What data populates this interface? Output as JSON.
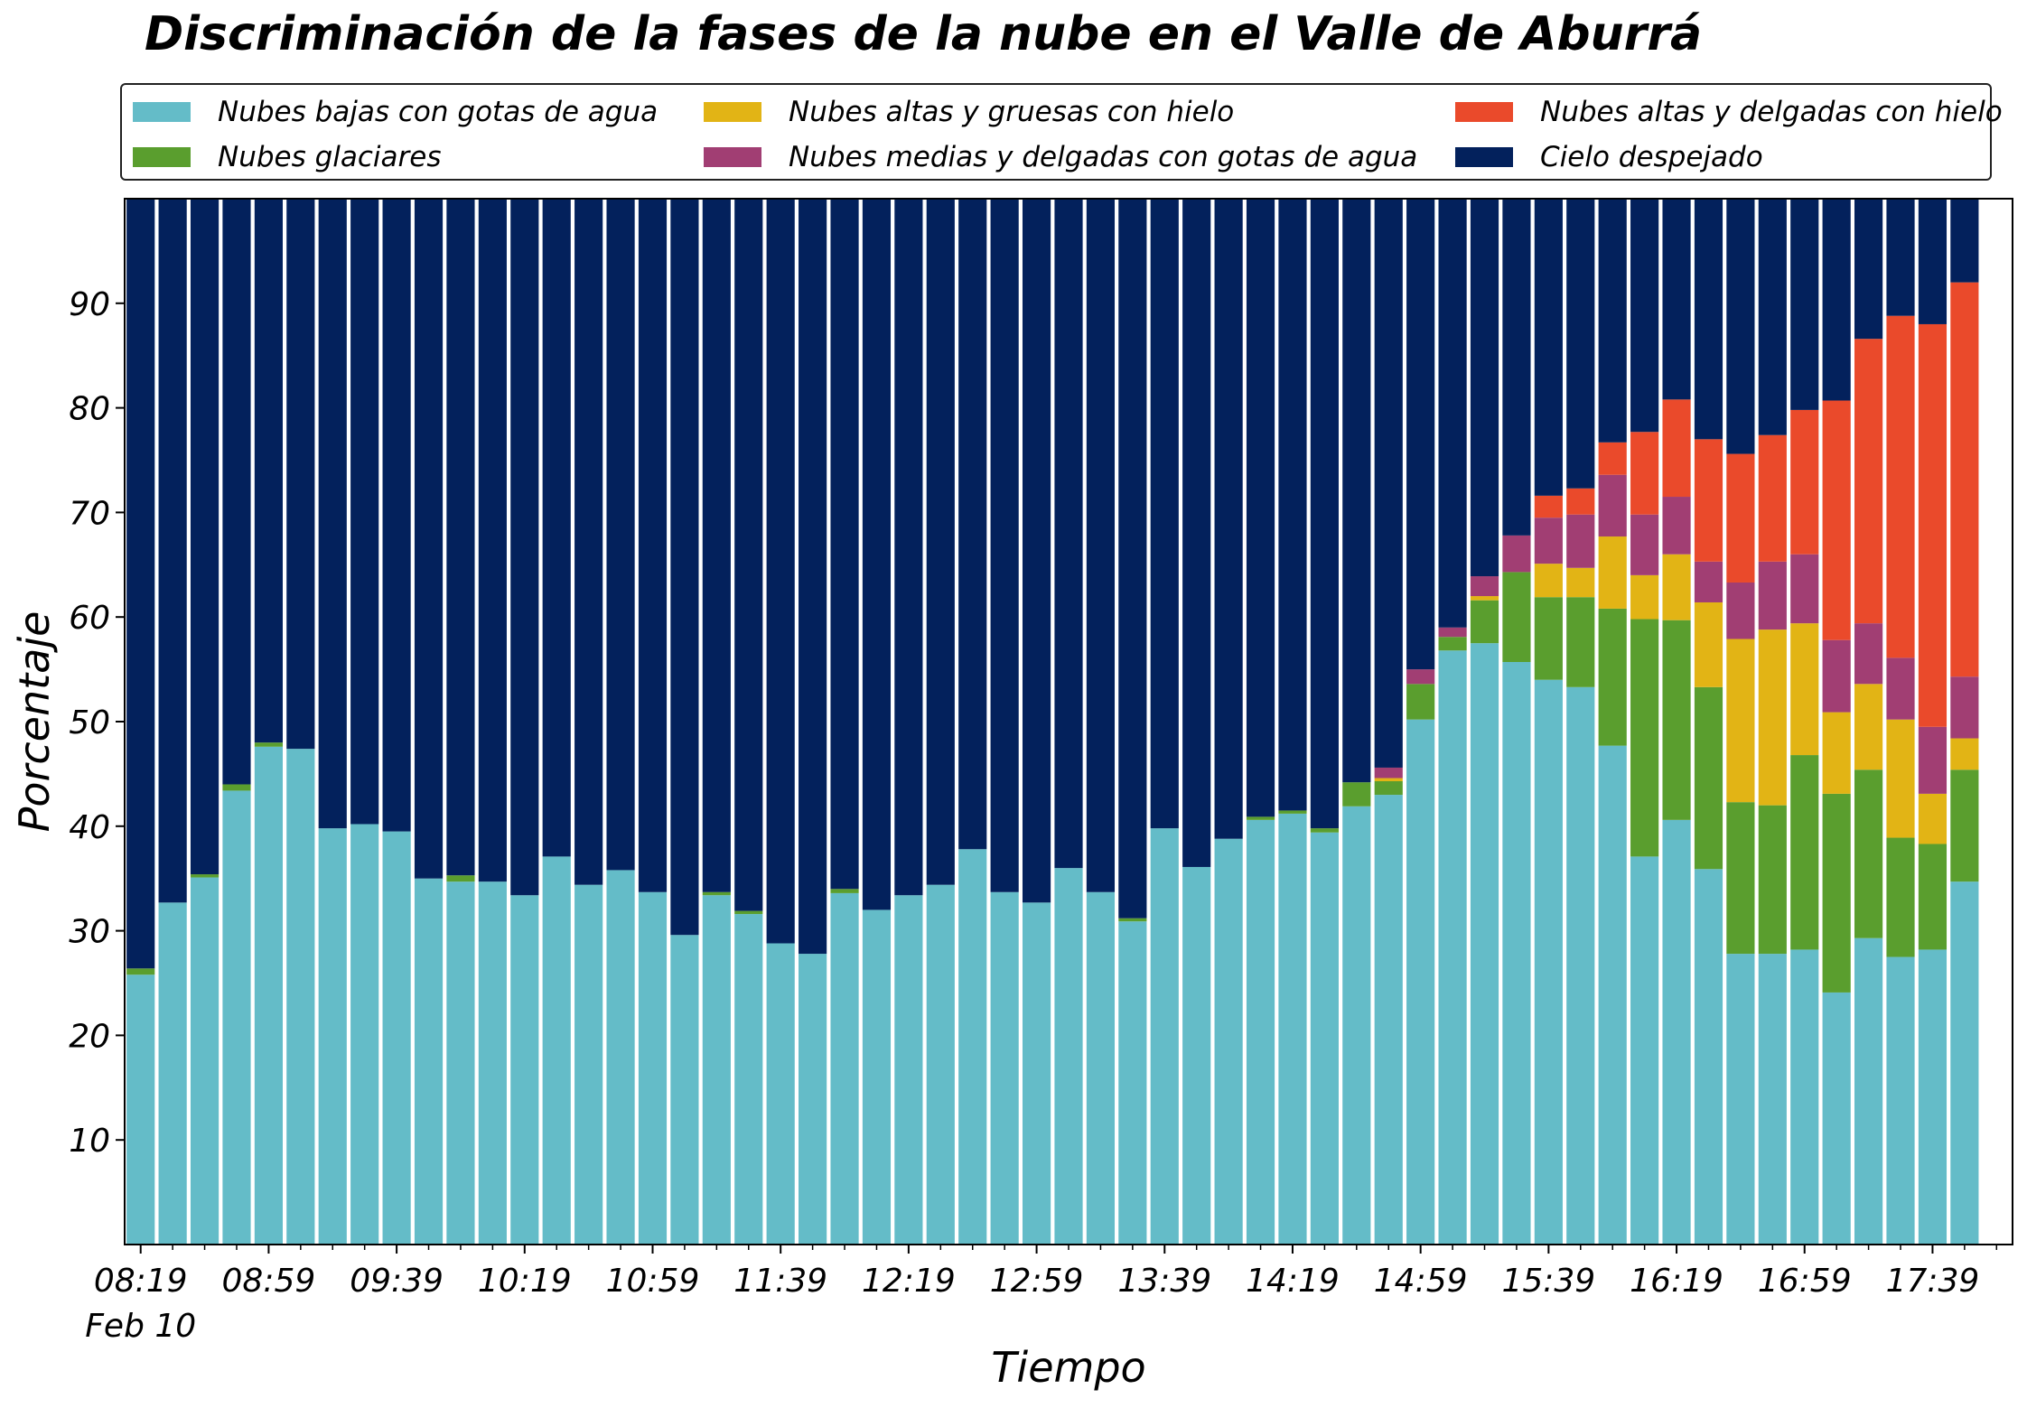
{
  "chart_data": {
    "type": "bar",
    "stacked": true,
    "title": "Discriminación de la fases de la nube en el Valle de Aburrá",
    "xlabel": "Tiempo",
    "ylabel": "Porcentaje",
    "ylim": [
      0,
      100
    ],
    "yticks": [
      10,
      20,
      30,
      40,
      50,
      60,
      70,
      80,
      90
    ],
    "date_label": "Feb 10",
    "xtick_labels": [
      "08:19",
      "08:59",
      "09:39",
      "10:19",
      "10:59",
      "11:39",
      "12:19",
      "12:59",
      "13:39",
      "14:19",
      "14:59",
      "15:39",
      "16:19",
      "16:59",
      "17:39"
    ],
    "categories": [
      "08:19",
      "08:29",
      "08:39",
      "08:49",
      "08:59",
      "09:09",
      "09:19",
      "09:29",
      "09:39",
      "09:49",
      "09:59",
      "10:09",
      "10:19",
      "10:29",
      "10:39",
      "10:49",
      "10:59",
      "11:09",
      "11:19",
      "11:29",
      "11:39",
      "11:49",
      "11:59",
      "12:09",
      "12:19",
      "12:29",
      "12:39",
      "12:49",
      "12:59",
      "13:09",
      "13:19",
      "13:29",
      "13:39",
      "13:49",
      "13:59",
      "14:09",
      "14:19",
      "14:29",
      "14:39",
      "14:49",
      "14:59",
      "15:09",
      "15:19",
      "15:29",
      "15:39",
      "15:49",
      "15:59",
      "16:09",
      "16:19",
      "16:29",
      "16:39",
      "16:49",
      "16:59",
      "17:09",
      "17:19",
      "17:29",
      "17:39",
      "17:49",
      "17:59"
    ],
    "grid": false,
    "legend_position": "top",
    "series": [
      {
        "name": "Nubes bajas con gotas de agua",
        "color": "#64BCC8",
        "values": [
          25.8,
          32.7,
          35.1,
          43.4,
          47.6,
          47.4,
          39.8,
          40.2,
          39.5,
          35.0,
          34.7,
          34.7,
          33.4,
          37.1,
          34.4,
          35.8,
          33.7,
          29.6,
          33.4,
          31.6,
          28.8,
          27.8,
          33.6,
          32.0,
          33.4,
          34.4,
          37.8,
          33.7,
          32.7,
          36.0,
          33.7,
          30.9,
          39.8,
          36.1,
          38.8,
          40.6,
          41.2,
          39.4,
          41.9,
          43.0,
          50.2,
          56.8,
          57.5,
          55.7,
          54.0,
          53.3,
          47.7,
          37.1,
          40.6,
          35.9,
          27.8,
          27.8,
          28.2,
          24.1,
          29.3,
          27.5,
          28.2,
          34.7,
          0
        ]
      },
      {
        "name": "Nubes glaciares",
        "color": "#5A9E2E",
        "values": [
          0.6,
          0,
          0.3,
          0.6,
          0.4,
          0,
          0,
          0,
          0,
          0,
          0.6,
          0,
          0,
          0,
          0,
          0,
          0,
          0,
          0.3,
          0.3,
          0,
          0,
          0.4,
          0,
          0,
          0,
          0,
          0,
          0,
          0,
          0,
          0.3,
          0,
          0,
          0,
          0.3,
          0.3,
          0.4,
          2.3,
          1.3,
          3.4,
          1.3,
          4.1,
          8.6,
          7.9,
          8.6,
          13.1,
          22.7,
          19.1,
          17.4,
          14.5,
          14.2,
          18.6,
          19.0,
          16.1,
          11.4,
          10.1,
          10.7,
          0
        ]
      },
      {
        "name": "Nubes altas y gruesas con hielo",
        "color": "#E2B415",
        "values": [
          0,
          0,
          0,
          0,
          0,
          0,
          0,
          0,
          0,
          0,
          0,
          0,
          0,
          0,
          0,
          0,
          0,
          0,
          0,
          0,
          0,
          0,
          0,
          0,
          0,
          0,
          0,
          0,
          0,
          0,
          0,
          0,
          0,
          0,
          0,
          0,
          0,
          0,
          0,
          0.3,
          0,
          0,
          0.4,
          0,
          3.2,
          2.8,
          6.9,
          4.2,
          6.3,
          8.1,
          15.6,
          16.8,
          12.6,
          7.8,
          8.2,
          11.3,
          4.8,
          3.0,
          0
        ]
      },
      {
        "name": "Nubes medias y delgadas con gotas de agua",
        "color": "#A13E73",
        "values": [
          0,
          0,
          0,
          0,
          0,
          0,
          0,
          0,
          0,
          0,
          0,
          0,
          0,
          0,
          0,
          0,
          0,
          0,
          0,
          0,
          0,
          0,
          0,
          0,
          0,
          0,
          0,
          0,
          0,
          0,
          0,
          0,
          0,
          0,
          0,
          0,
          0,
          0,
          0,
          1.0,
          1.4,
          0.9,
          1.9,
          3.5,
          4.4,
          5.1,
          5.9,
          5.8,
          5.5,
          3.9,
          5.4,
          6.5,
          6.6,
          6.9,
          5.8,
          5.9,
          6.4,
          5.9,
          0
        ]
      },
      {
        "name": "Nubes altas y delgadas con hielo",
        "color": "#EA4A2B",
        "values": [
          0,
          0,
          0,
          0,
          0,
          0,
          0,
          0,
          0,
          0,
          0,
          0,
          0,
          0,
          0,
          0,
          0,
          0,
          0,
          0,
          0,
          0,
          0,
          0,
          0,
          0,
          0,
          0,
          0,
          0,
          0,
          0,
          0,
          0,
          0,
          0,
          0,
          0,
          0,
          0,
          0,
          0,
          0,
          0,
          2.1,
          2.5,
          3.1,
          7.9,
          9.3,
          11.7,
          12.3,
          12.1,
          13.8,
          22.9,
          27.2,
          32.7,
          38.5,
          37.7,
          0
        ]
      },
      {
        "name": "Cielo despejado",
        "color": "#03215C",
        "values": [
          73.6,
          67.3,
          64.6,
          56.0,
          52.0,
          52.6,
          60.2,
          59.8,
          60.5,
          65.0,
          64.7,
          65.3,
          66.6,
          62.9,
          65.6,
          64.2,
          66.3,
          70.4,
          66.3,
          68.1,
          71.2,
          72.2,
          66.0,
          68.0,
          66.6,
          65.6,
          62.2,
          66.3,
          67.3,
          64.0,
          66.3,
          68.8,
          60.2,
          63.9,
          61.2,
          59.1,
          58.5,
          60.2,
          55.8,
          54.4,
          45.0,
          41.0,
          36.1,
          32.2,
          28.4,
          27.7,
          23.3,
          22.3,
          19.2,
          23.0,
          24.4,
          22.6,
          20.2,
          19.3,
          13.4,
          11.2,
          12.0,
          8.0,
          0
        ]
      }
    ]
  }
}
